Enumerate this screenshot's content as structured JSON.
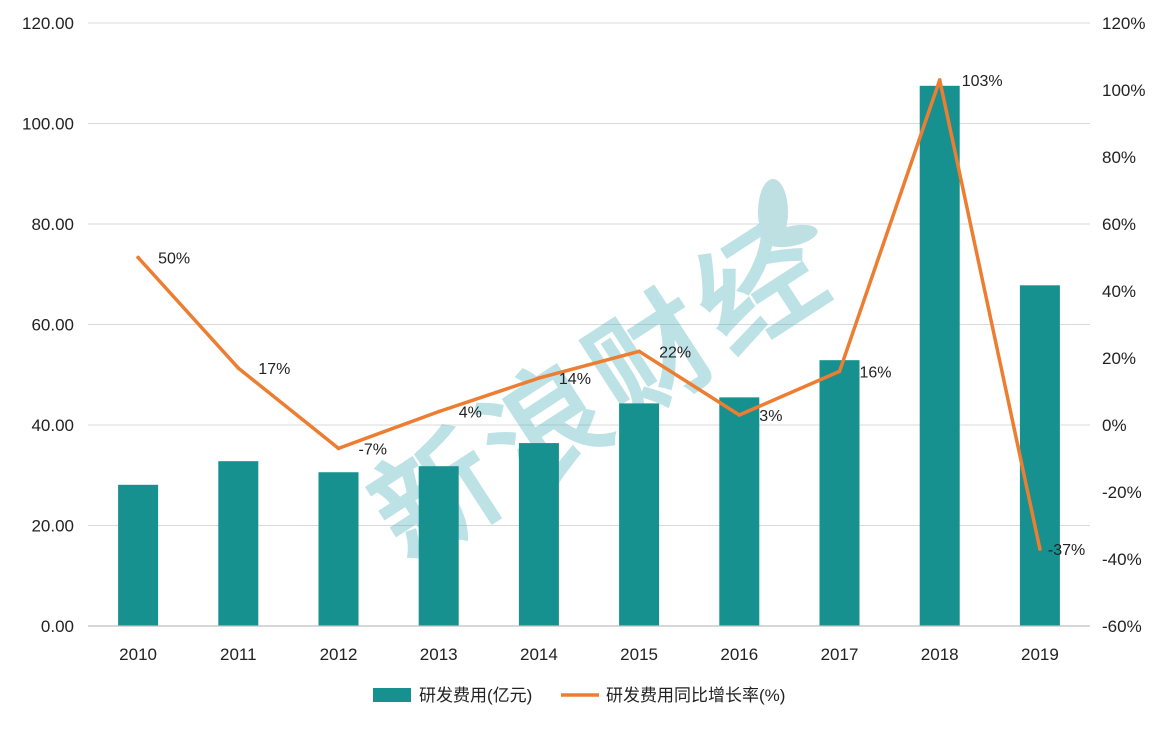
{
  "chart_data": {
    "type": "bar+line",
    "categories": [
      "2010",
      "2011",
      "2012",
      "2013",
      "2014",
      "2015",
      "2016",
      "2017",
      "2018",
      "2019"
    ],
    "series": [
      {
        "name": "研发费用(亿元)",
        "type": "bar",
        "axis": "left",
        "color": "#16918f",
        "values": [
          28.1,
          32.8,
          30.6,
          31.8,
          36.4,
          44.3,
          45.5,
          52.9,
          107.5,
          67.8
        ]
      },
      {
        "name": "研发费用同比增长率(%)",
        "type": "line",
        "axis": "right",
        "color": "#ed7d31",
        "values": [
          50,
          17,
          -7,
          4,
          14,
          22,
          3,
          16,
          103,
          -37
        ],
        "labels": [
          "50%",
          "17%",
          "-7%",
          "4%",
          "14%",
          "22%",
          "3%",
          "16%",
          "103%",
          "-37%"
        ]
      }
    ],
    "y_left": {
      "min": 0,
      "max": 120,
      "ticks": [
        "0.00",
        "20.00",
        "40.00",
        "60.00",
        "80.00",
        "100.00",
        "120.00"
      ]
    },
    "y_right": {
      "min": -60,
      "max": 120,
      "ticks": [
        "-60%",
        "-40%",
        "-20%",
        "0%",
        "20%",
        "40%",
        "60%",
        "80%",
        "100%",
        "120%"
      ]
    },
    "grid": true,
    "legend": "bottom-center",
    "watermark": "新浪财经"
  }
}
